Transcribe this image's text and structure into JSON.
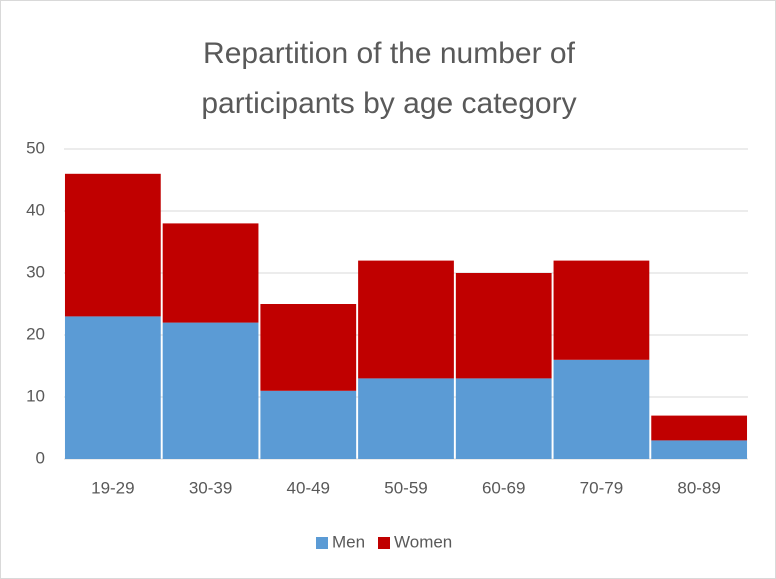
{
  "chart_data": {
    "type": "stacked_bar",
    "title": "Repartition of the number of participants by age category",
    "categories": [
      "19-29",
      "30-39",
      "40-49",
      "50-59",
      "60-69",
      "70-79",
      "80-89"
    ],
    "series": [
      {
        "name": "Men",
        "color": "#5b9bd5",
        "values": [
          23,
          22,
          11,
          13,
          13,
          16,
          3
        ]
      },
      {
        "name": "Women",
        "color": "#c00000",
        "values": [
          23,
          16,
          14,
          19,
          17,
          16,
          4
        ]
      }
    ],
    "ylim": [
      0,
      50
    ],
    "yticks": [
      0,
      10,
      20,
      30,
      40,
      50
    ],
    "grid": true,
    "legend": "bottom"
  }
}
